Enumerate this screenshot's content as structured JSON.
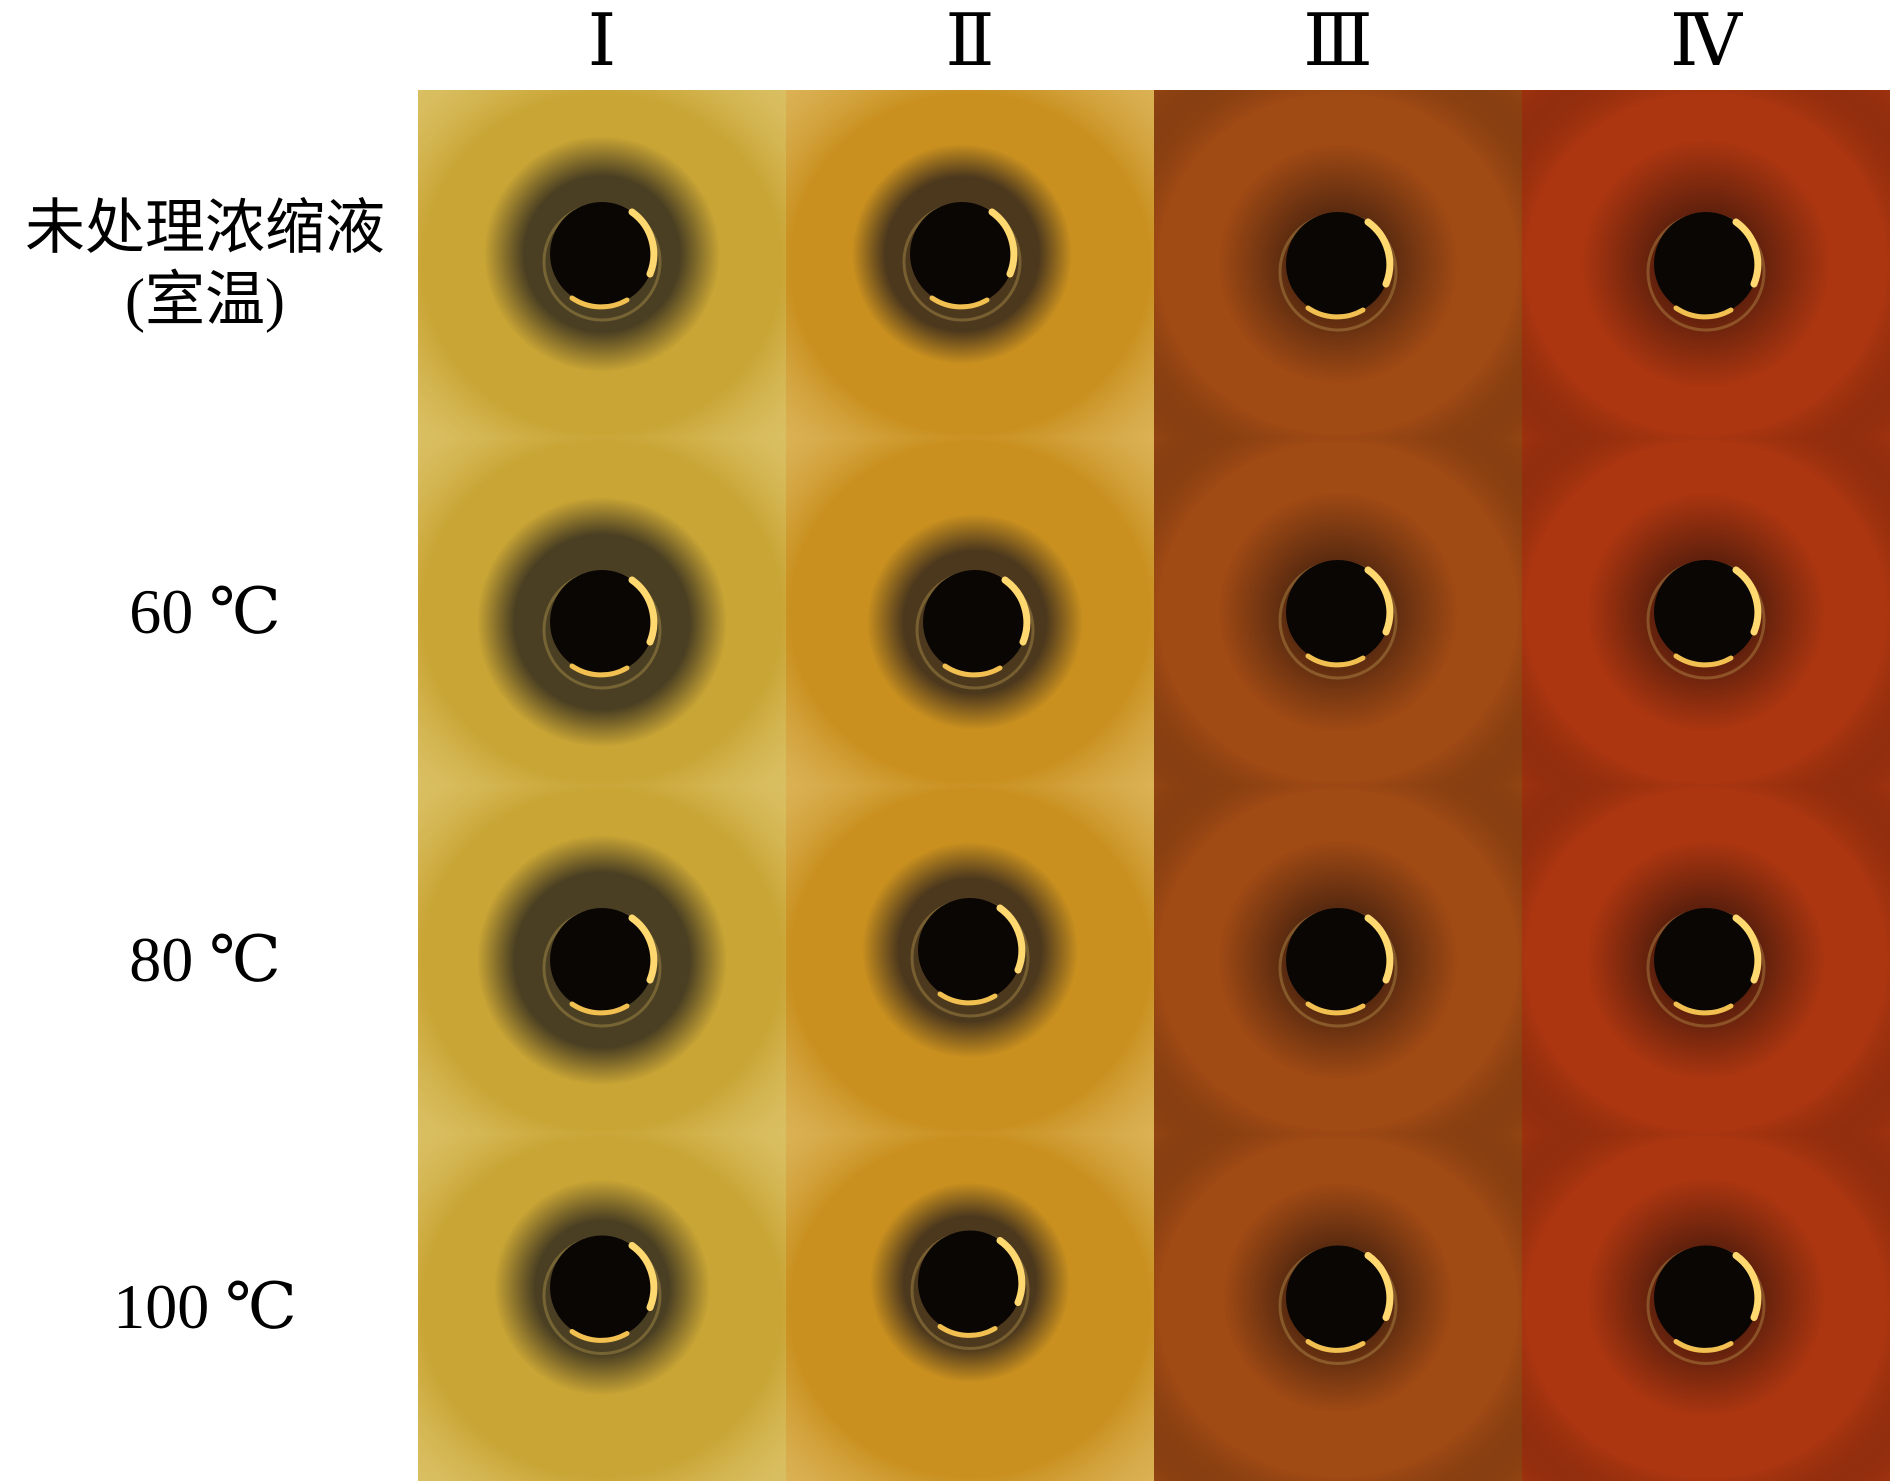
{
  "columns": [
    {
      "label": "Ⅰ",
      "background": "#c9a535",
      "halo": "#4a3f22"
    },
    {
      "label": "Ⅱ",
      "background": "#c9901f",
      "halo": "#4c381d"
    },
    {
      "label": "Ⅲ",
      "background": "#a04a14",
      "halo": "#3a1c0e"
    },
    {
      "label": "Ⅳ",
      "background": "#ac3610",
      "halo": "#3b160b"
    }
  ],
  "rows": [
    {
      "line1": "未处理浓缩液",
      "line2": "(室温)"
    },
    {
      "temp": "60 ℃"
    },
    {
      "temp": "80 ℃"
    },
    {
      "temp": "100 ℃"
    }
  ]
}
